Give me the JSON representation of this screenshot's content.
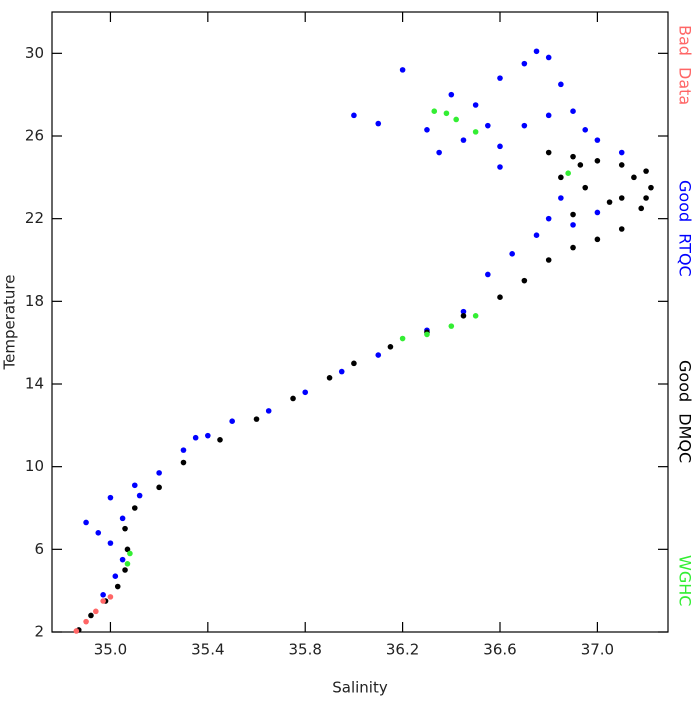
{
  "chart_data": {
    "type": "scatter",
    "x_label": "Salinity",
    "y_label": "Temperature",
    "xlim": [
      34.76,
      37.29
    ],
    "ylim": [
      2,
      32
    ],
    "xticks": [
      {
        "value": 35.0,
        "label": "35.0"
      },
      35.4,
      35.8,
      36.2,
      36.6,
      {
        "value": 37.0,
        "label": "37.0"
      }
    ],
    "yticks": [
      2,
      6,
      10,
      14,
      18,
      22,
      26,
      30
    ],
    "grid": false,
    "legend": "right",
    "series": [
      {
        "name": "Bad Data",
        "color": "#ff6666",
        "x": [
          34.86,
          34.9,
          34.94,
          34.97,
          35.0
        ],
        "values": [
          2.05,
          2.5,
          3.0,
          3.5,
          3.7
        ]
      },
      {
        "name": "Good RTQC",
        "color": "#0000ff",
        "x": [
          36.0,
          36.1,
          36.2,
          36.3,
          36.4,
          36.5,
          36.6,
          36.7,
          36.75,
          36.8,
          36.85,
          36.9,
          36.55,
          36.45,
          36.35,
          36.6,
          36.95,
          37.0,
          37.1,
          36.8,
          36.7,
          36.6,
          36.8,
          36.75,
          36.9,
          37.0,
          36.85,
          36.65,
          36.55,
          34.9,
          34.95,
          35.0,
          35.05,
          35.0,
          35.1,
          35.2,
          35.3,
          35.4,
          35.5,
          35.65,
          35.8,
          35.95,
          36.1,
          36.3,
          36.45,
          34.97,
          35.02,
          35.05,
          35.12,
          35.35
        ],
        "values": [
          27,
          26.6,
          29.2,
          26.3,
          28,
          27.5,
          28.8,
          29.5,
          30.1,
          29.8,
          28.5,
          27.2,
          26.5,
          25.8,
          25.2,
          25.5,
          26.3,
          25.8,
          25.2,
          27,
          26.5,
          24.5,
          22,
          21.2,
          21.7,
          22.3,
          23,
          20.3,
          19.3,
          7.3,
          6.8,
          6.3,
          7.5,
          8.5,
          9.1,
          9.7,
          10.8,
          11.5,
          12.2,
          12.7,
          13.6,
          14.6,
          15.4,
          16.6,
          17.5,
          3.8,
          4.7,
          5.5,
          8.6,
          11.4
        ]
      },
      {
        "name": "Good DMQC",
        "color": "#000000",
        "x": [
          34.87,
          34.92,
          34.98,
          35.03,
          35.06,
          35.07,
          35.06,
          35.1,
          35.2,
          35.3,
          35.45,
          35.6,
          35.75,
          35.9,
          36.0,
          36.15,
          36.3,
          36.45,
          36.6,
          36.7,
          36.8,
          36.9,
          37.0,
          37.1,
          37.18,
          37.22,
          37.2,
          37.1,
          37.0,
          36.9,
          36.8,
          36.95,
          37.05,
          36.9,
          37.1,
          37.15,
          36.85,
          36.93,
          37.2
        ],
        "values": [
          2.1,
          2.8,
          3.5,
          4.2,
          5,
          6,
          7,
          8,
          9,
          10.2,
          11.3,
          12.3,
          13.3,
          14.3,
          15,
          15.8,
          16.5,
          17.3,
          18.2,
          19,
          20,
          20.6,
          21,
          21.5,
          22.5,
          23.5,
          24.3,
          24.6,
          24.8,
          25,
          25.2,
          23.5,
          22.8,
          22.2,
          23,
          24,
          24,
          24.6,
          23
        ]
      },
      {
        "name": "WGHC",
        "color": "#33ee33",
        "x": [
          36.33,
          36.38,
          36.42,
          36.5,
          36.2,
          36.3,
          36.4,
          36.5,
          35.07,
          35.08,
          36.88
        ],
        "values": [
          27.2,
          27.1,
          26.8,
          26.2,
          16.2,
          16.4,
          16.8,
          17.3,
          5.3,
          5.8,
          24.2
        ]
      }
    ]
  }
}
